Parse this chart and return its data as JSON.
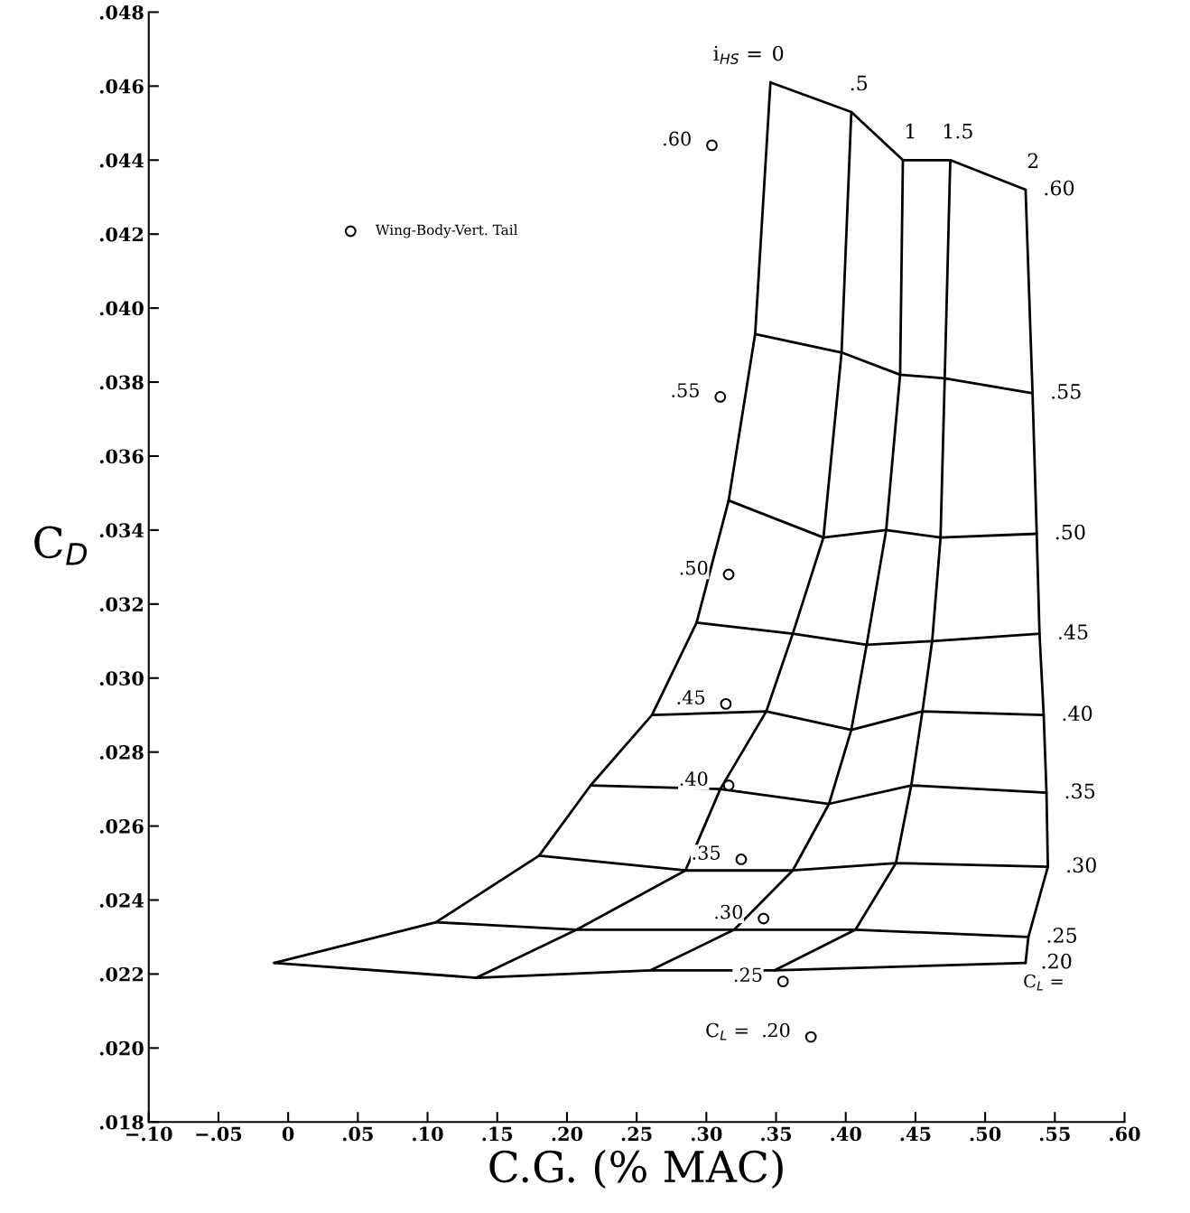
{
  "chart_data": {
    "type": "line",
    "xlabel": "C.G. (% MAC)",
    "ylabel": "C$_{D}$",
    "xlim": [
      -0.1,
      0.6
    ],
    "ylim": [
      0.018,
      0.048
    ],
    "xticks": [
      {
        "value": -0.1,
        "label": "−.10"
      },
      {
        "value": -0.05,
        "label": "−.05"
      },
      {
        "value": 0,
        "label": "0"
      },
      {
        "value": 0.05,
        "label": ".05"
      },
      {
        "value": 0.1,
        "label": ".10"
      },
      {
        "value": 0.15,
        "label": ".15"
      },
      {
        "value": 0.2,
        "label": ".20"
      },
      {
        "value": 0.25,
        "label": ".25"
      },
      {
        "value": 0.3,
        "label": ".30"
      },
      {
        "value": 0.35,
        "label": ".35"
      },
      {
        "value": 0.4,
        "label": ".40"
      },
      {
        "value": 0.45,
        "label": ".45"
      },
      {
        "value": 0.5,
        "label": ".50"
      },
      {
        "value": 0.55,
        "label": ".55"
      },
      {
        "value": 0.6,
        "label": ".60"
      }
    ],
    "yticks": [
      {
        "value": 0.018,
        "label": ".018"
      },
      {
        "value": 0.02,
        "label": ".020"
      },
      {
        "value": 0.022,
        "label": ".022"
      },
      {
        "value": 0.024,
        "label": ".024"
      },
      {
        "value": 0.026,
        "label": ".026"
      },
      {
        "value": 0.028,
        "label": ".028"
      },
      {
        "value": 0.03,
        "label": ".030"
      },
      {
        "value": 0.032,
        "label": ".032"
      },
      {
        "value": 0.034,
        "label": ".034"
      },
      {
        "value": 0.036,
        "label": ".036"
      },
      {
        "value": 0.038,
        "label": ".038"
      },
      {
        "value": 0.04,
        "label": ".040"
      },
      {
        "value": 0.042,
        "label": ".042"
      },
      {
        "value": 0.044,
        "label": ".044"
      },
      {
        "value": 0.046,
        "label": ".046"
      },
      {
        "value": 0.048,
        "label": ".048"
      }
    ],
    "grid": false,
    "legend": "top left",
    "marker": "none",
    "line_style": "solid",
    "series": [
      {
        "name": ".60",
        "color": "#000000",
        "x": [
          0.346,
          0.404,
          0.441,
          0.475,
          0.529
        ],
        "values": [
          0.0461,
          0.0453,
          0.044,
          0.044,
          0.0432
        ]
      },
      {
        "name": ".55",
        "color": "#000000",
        "x": [
          0.335,
          0.397,
          0.439,
          0.471,
          0.534
        ],
        "values": [
          0.0393,
          0.0388,
          0.0382,
          0.0381,
          0.0377
        ]
      },
      {
        "name": ".50",
        "color": "#000000",
        "x": [
          0.316,
          0.384,
          0.429,
          0.468,
          0.537
        ],
        "values": [
          0.0348,
          0.0338,
          0.034,
          0.0338,
          0.0339
        ]
      },
      {
        "name": ".45",
        "color": "#000000",
        "x": [
          0.293,
          0.362,
          0.415,
          0.462,
          0.539
        ],
        "values": [
          0.0315,
          0.0312,
          0.0309,
          0.031,
          0.0312
        ]
      },
      {
        "name": ".40",
        "color": "#000000",
        "x": [
          0.261,
          0.343,
          0.404,
          0.455,
          0.542
        ],
        "values": [
          0.029,
          0.0291,
          0.0286,
          0.0291,
          0.029
        ]
      },
      {
        "name": ".35",
        "color": "#000000",
        "x": [
          0.217,
          0.31,
          0.388,
          0.447,
          0.544
        ],
        "values": [
          0.0271,
          0.027,
          0.0266,
          0.0271,
          0.0269
        ]
      },
      {
        "name": ".30",
        "color": "#000000",
        "x": [
          0.18,
          0.285,
          0.362,
          0.436,
          0.545
        ],
        "values": [
          0.0252,
          0.0248,
          0.0248,
          0.025,
          0.0249
        ]
      },
      {
        "name": ".25",
        "color": "#000000",
        "x": [
          0.106,
          0.207,
          0.32,
          0.407,
          0.531
        ],
        "values": [
          0.0234,
          0.0232,
          0.0232,
          0.0232,
          0.023
        ]
      },
      {
        "name": ".20",
        "color": "#000000",
        "x": [
          -0.01,
          0.135,
          0.26,
          0.349,
          0.529
        ],
        "values": [
          0.0223,
          0.0219,
          0.0221,
          0.0221,
          0.0223
        ]
      },
      {
        "name": "0",
        "color": "#000000",
        "x": [
          -0.01,
          0.106,
          0.18,
          0.217,
          0.261,
          0.293,
          0.316,
          0.335,
          0.346
        ],
        "values": [
          0.0223,
          0.0234,
          0.0252,
          0.0271,
          0.029,
          0.0315,
          0.0348,
          0.0393,
          0.0461
        ]
      },
      {
        "name": ".5",
        "color": "#000000",
        "x": [
          0.135,
          0.207,
          0.285,
          0.31,
          0.343,
          0.362,
          0.384,
          0.397,
          0.404
        ],
        "values": [
          0.0219,
          0.0232,
          0.0248,
          0.027,
          0.0291,
          0.0312,
          0.0338,
          0.0388,
          0.0453
        ]
      },
      {
        "name": "1",
        "color": "#000000",
        "x": [
          0.26,
          0.32,
          0.362,
          0.388,
          0.404,
          0.415,
          0.429,
          0.439,
          0.441
        ],
        "values": [
          0.0221,
          0.0232,
          0.0248,
          0.0266,
          0.0286,
          0.0309,
          0.034,
          0.0382,
          0.044
        ]
      },
      {
        "name": "1.5",
        "color": "#000000",
        "x": [
          0.349,
          0.407,
          0.436,
          0.447,
          0.455,
          0.462,
          0.468,
          0.471,
          0.475
        ],
        "values": [
          0.0221,
          0.0232,
          0.025,
          0.0271,
          0.0291,
          0.031,
          0.0338,
          0.0381,
          0.044
        ]
      },
      {
        "name": "2",
        "color": "#000000",
        "x": [
          0.529,
          0.531,
          0.545,
          0.544,
          0.542,
          0.539,
          0.537,
          0.534,
          0.529
        ],
        "values": [
          0.0223,
          0.023,
          0.0249,
          0.0269,
          0.029,
          0.0312,
          0.0339,
          0.0377,
          0.0432
        ]
      },
      {
        "type": "scatter",
        "name": "Wing-Body-Vert. Tail",
        "color": "#000000",
        "marker": "circle",
        "x": [
          0.304,
          0.31,
          0.316,
          0.314,
          0.316,
          0.325,
          0.341,
          0.355,
          0.375
        ],
        "values": [
          0.0444,
          0.0376,
          0.0328,
          0.0293,
          0.0271,
          0.0251,
          0.0235,
          0.0218,
          0.0203
        ]
      }
    ],
    "annotations": [
      ".60",
      ".55",
      ".50",
      ".45",
      ".40",
      ".35",
      ".30",
      ".25",
      "C$_{L}$ =  .20",
      "i$_{HS}$ =",
      "C$_{L}$ ="
    ]
  }
}
